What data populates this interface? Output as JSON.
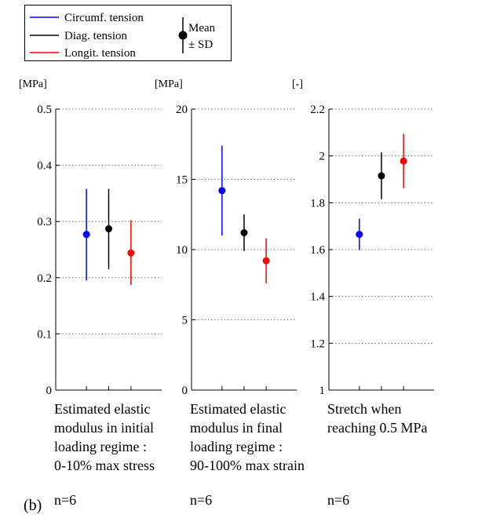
{
  "legend": {
    "entries": [
      {
        "label": "Circumf. tension",
        "color": "#0000ff"
      },
      {
        "label": "Diag. tension",
        "color": "#000000"
      },
      {
        "label": "Longit. tension",
        "color": "#ff0000"
      }
    ],
    "marker_label_1": "Mean",
    "marker_label_2": "± SD"
  },
  "panel_label": "(b)",
  "chart_data": [
    {
      "type": "scatter",
      "unit_label": "[MPa]",
      "ylim": [
        0,
        0.5
      ],
      "yticks": [
        0,
        0.1,
        0.2,
        0.3,
        0.4,
        0.5
      ],
      "ytick_labels": [
        "0",
        "0.1",
        "0.2",
        "0.3",
        "0.4",
        "0.5"
      ],
      "grid": "horizontal dotted",
      "caption": [
        "Estimated elastic",
        "modulus in initial",
        "loading regime :",
        "0-10% max stress"
      ],
      "n_label": "n=6",
      "series": [
        {
          "mean": 0.277,
          "low": 0.195,
          "high": 0.358,
          "color": "#0000ff"
        },
        {
          "mean": 0.287,
          "low": 0.215,
          "high": 0.358,
          "color": "#000000"
        },
        {
          "mean": 0.244,
          "low": 0.187,
          "high": 0.302,
          "color": "#ff0000"
        }
      ]
    },
    {
      "type": "scatter",
      "unit_label": "[MPa]",
      "ylim": [
        0,
        20
      ],
      "yticks": [
        0,
        5,
        10,
        15,
        20
      ],
      "ytick_labels": [
        "0",
        "5",
        "10",
        "15",
        "20"
      ],
      "grid": "horizontal dotted",
      "caption": [
        "Estimated elastic",
        "modulus in final",
        "loading regime :",
        "90-100% max strain"
      ],
      "n_label": "n=6",
      "series": [
        {
          "mean": 14.2,
          "low": 11.0,
          "high": 17.4,
          "color": "#0000ff"
        },
        {
          "mean": 11.2,
          "low": 9.9,
          "high": 12.5,
          "color": "#000000"
        },
        {
          "mean": 9.2,
          "low": 7.6,
          "high": 10.8,
          "color": "#ff0000"
        }
      ]
    },
    {
      "type": "scatter",
      "unit_label": "[-]",
      "ylim": [
        1,
        2.2
      ],
      "yticks": [
        1,
        1.2,
        1.4,
        1.6,
        1.8,
        2,
        2.2
      ],
      "ytick_labels": [
        "1",
        "1.2",
        "1.4",
        "1.6",
        "1.8",
        "2",
        "2.2"
      ],
      "grid": "horizontal dotted",
      "caption": [
        "Stretch when",
        "reaching 0.5 MPa"
      ],
      "n_label": "n=6",
      "series": [
        {
          "mean": 1.665,
          "low": 1.598,
          "high": 1.732,
          "color": "#0000ff"
        },
        {
          "mean": 1.915,
          "low": 1.815,
          "high": 2.015,
          "color": "#000000"
        },
        {
          "mean": 1.978,
          "low": 1.862,
          "high": 2.094,
          "color": "#ff0000"
        }
      ]
    }
  ]
}
